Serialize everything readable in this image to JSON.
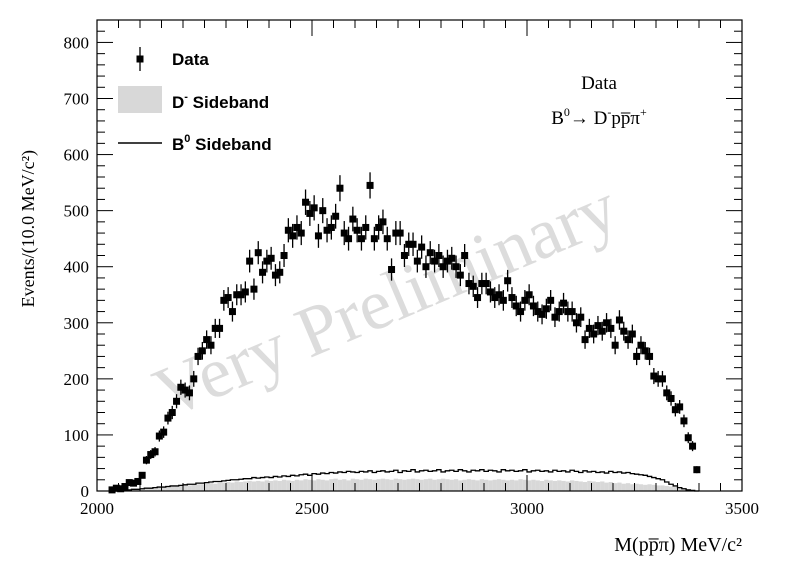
{
  "chart_data": {
    "type": "scatter",
    "xlabel": "M(pp̅π) MeV/c²",
    "ylabel": "Events/(10.0 MeV/c²)",
    "xlim": [
      2000,
      3500
    ],
    "ylim": [
      0,
      840
    ],
    "xticks": [
      2000,
      2500,
      3000,
      3500
    ],
    "yticks": [
      0,
      100,
      200,
      300,
      400,
      500,
      600,
      700,
      800
    ],
    "grid": false,
    "legend_position": "top-left",
    "watermark": "Very Preliminary",
    "info": {
      "line1": "Data",
      "line2_parts": [
        "B",
        "0",
        "→ D",
        "-",
        "pp̅π",
        "+"
      ]
    },
    "legend": [
      {
        "series": "data",
        "text": "Data",
        "sup": ""
      },
      {
        "series": "d_sideband",
        "text": "D",
        "sup": "-",
        "rest": " Sideband"
      },
      {
        "series": "b0_sideband",
        "text": "B",
        "sup": "0",
        "rest": " Sideband"
      }
    ],
    "series": [
      {
        "name": "Data",
        "style": "points-with-errors",
        "color": "#000000",
        "x": [
          2035,
          2045,
          2055,
          2065,
          2075,
          2085,
          2095,
          2105,
          2115,
          2125,
          2135,
          2145,
          2155,
          2165,
          2175,
          2185,
          2195,
          2205,
          2215,
          2225,
          2235,
          2245,
          2255,
          2265,
          2275,
          2285,
          2295,
          2305,
          2315,
          2325,
          2335,
          2345,
          2355,
          2365,
          2375,
          2385,
          2395,
          2405,
          2415,
          2425,
          2435,
          2445,
          2455,
          2465,
          2475,
          2485,
          2495,
          2505,
          2515,
          2525,
          2535,
          2545,
          2555,
          2565,
          2575,
          2585,
          2595,
          2605,
          2615,
          2625,
          2635,
          2645,
          2655,
          2665,
          2675,
          2685,
          2695,
          2705,
          2715,
          2725,
          2735,
          2745,
          2755,
          2765,
          2775,
          2785,
          2795,
          2805,
          2815,
          2825,
          2835,
          2845,
          2855,
          2865,
          2875,
          2885,
          2895,
          2905,
          2915,
          2925,
          2935,
          2945,
          2955,
          2965,
          2975,
          2985,
          2995,
          3005,
          3015,
          3025,
          3035,
          3045,
          3055,
          3065,
          3075,
          3085,
          3095,
          3105,
          3115,
          3125,
          3135,
          3145,
          3155,
          3165,
          3175,
          3185,
          3195,
          3205,
          3215,
          3225,
          3235,
          3245,
          3255,
          3265,
          3275,
          3285,
          3295,
          3305,
          3315,
          3325,
          3335,
          3345,
          3355,
          3365,
          3375,
          3385,
          3395
        ],
        "y": [
          2,
          5,
          4,
          8,
          15,
          14,
          17,
          28,
          55,
          65,
          70,
          98,
          105,
          130,
          140,
          160,
          185,
          180,
          175,
          200,
          240,
          250,
          270,
          260,
          290,
          290,
          340,
          345,
          320,
          350,
          350,
          355,
          410,
          360,
          425,
          390,
          410,
          415,
          385,
          390,
          420,
          465,
          455,
          470,
          460,
          515,
          495,
          505,
          455,
          500,
          465,
          470,
          490,
          540,
          460,
          450,
          485,
          465,
          450,
          470,
          545,
          450,
          470,
          480,
          450,
          395,
          460,
          460,
          420,
          440,
          440,
          410,
          435,
          400,
          425,
          410,
          420,
          400,
          410,
          415,
          400,
          385,
          420,
          370,
          365,
          345,
          370,
          370,
          355,
          345,
          350,
          340,
          375,
          345,
          330,
          320,
          340,
          350,
          330,
          320,
          315,
          325,
          340,
          310,
          320,
          335,
          320,
          320,
          300,
          310,
          270,
          290,
          280,
          295,
          285,
          300,
          290,
          260,
          305,
          285,
          270,
          280,
          240,
          260,
          250,
          240,
          205,
          200,
          200,
          175,
          165,
          145,
          150,
          125,
          95,
          80,
          38
        ]
      },
      {
        "name": "D- Sideband",
        "style": "filled-histogram",
        "color": "#d8d8d8",
        "bin_width": 10,
        "x_start": 2030,
        "values": [
          0,
          0,
          0,
          0,
          1,
          2,
          3,
          3,
          4,
          5,
          5,
          6,
          7,
          7,
          8,
          8,
          9,
          10,
          10,
          11,
          12,
          12,
          13,
          14,
          13,
          15,
          15,
          16,
          15,
          17,
          16,
          17,
          18,
          17,
          18,
          17,
          19,
          18,
          19,
          18,
          20,
          19,
          18,
          20,
          19,
          21,
          20,
          19,
          21,
          20,
          19,
          21,
          22,
          20,
          21,
          19,
          22,
          21,
          20,
          22,
          21,
          20,
          21,
          22,
          21,
          20,
          22,
          21,
          20,
          21,
          22,
          21,
          20,
          21,
          22,
          20,
          21,
          22,
          21,
          20,
          21,
          19,
          20,
          21,
          20,
          19,
          21,
          20,
          19,
          20,
          21,
          20,
          19,
          20,
          19,
          21,
          20,
          19,
          20,
          19,
          18,
          20,
          19,
          18,
          19,
          18,
          17,
          19,
          18,
          17,
          16,
          18,
          17,
          16,
          17,
          15,
          16,
          14,
          15,
          13,
          14,
          12,
          13,
          12,
          11,
          12,
          11,
          10,
          10,
          9,
          8,
          7,
          6,
          5,
          3,
          2,
          1,
          0
        ]
      },
      {
        "name": "B0 Sideband",
        "style": "step-histogram",
        "color": "#000000",
        "bin_width": 10,
        "x_start": 2030,
        "values": [
          0,
          0,
          0,
          1,
          2,
          3,
          3,
          4,
          5,
          5,
          6,
          7,
          7,
          8,
          9,
          9,
          10,
          11,
          12,
          12,
          14,
          14,
          15,
          16,
          17,
          17,
          18,
          19,
          20,
          20,
          21,
          22,
          22,
          24,
          23,
          24,
          25,
          24,
          26,
          25,
          27,
          26,
          28,
          27,
          29,
          30,
          28,
          31,
          30,
          32,
          31,
          33,
          32,
          34,
          33,
          35,
          34,
          33,
          35,
          34,
          36,
          33,
          35,
          36,
          34,
          35,
          37,
          33,
          36,
          35,
          38,
          34,
          36,
          37,
          35,
          36,
          38,
          34,
          36,
          37,
          35,
          38,
          36,
          34,
          37,
          36,
          38,
          35,
          37,
          36,
          34,
          38,
          36,
          37,
          35,
          36,
          38,
          34,
          36,
          37,
          35,
          36,
          34,
          37,
          35,
          36,
          34,
          37,
          35,
          33,
          36,
          34,
          35,
          33,
          34,
          32,
          35,
          33,
          34,
          32,
          33,
          31,
          30,
          29,
          28,
          26,
          24,
          22,
          20,
          16,
          12,
          9,
          6,
          4,
          2,
          1,
          0
        ]
      }
    ]
  }
}
